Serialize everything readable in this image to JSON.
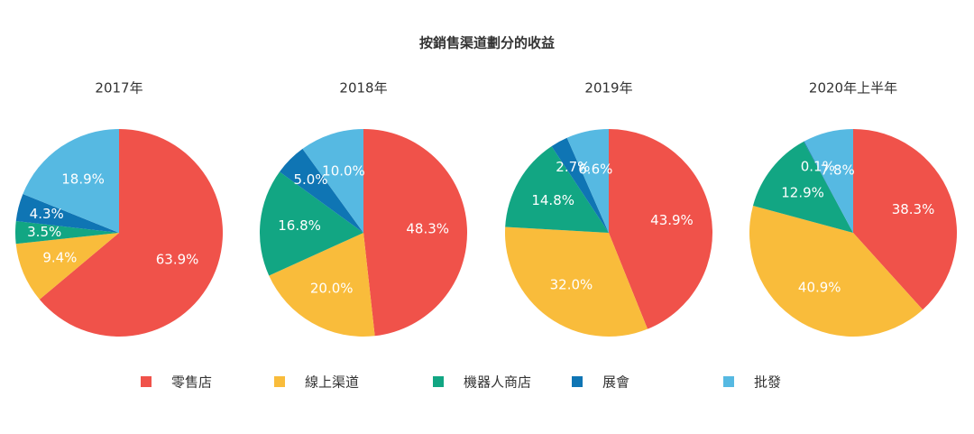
{
  "title": "按銷售渠道劃分的收益",
  "chart_data": [
    {
      "type": "pie",
      "title": "2017年",
      "categories": [
        "零售店",
        "線上渠道",
        "機器人商店",
        "展會",
        "批發"
      ],
      "colors": [
        "#f0524a",
        "#f9bc3b",
        "#12a683",
        "#0f75b4",
        "#56b9e2"
      ],
      "values": [
        63.9,
        9.4,
        3.5,
        4.3,
        18.9
      ],
      "value_labels": [
        "63.9%",
        "9.4%",
        "3.5%",
        "4.3%",
        "18.9%"
      ]
    },
    {
      "type": "pie",
      "title": "2018年",
      "categories": [
        "零售店",
        "線上渠道",
        "機器人商店",
        "展會",
        "批發"
      ],
      "colors": [
        "#f0524a",
        "#f9bc3b",
        "#12a683",
        "#0f75b4",
        "#56b9e2"
      ],
      "values": [
        48.3,
        20.0,
        16.8,
        5.0,
        10.0
      ],
      "value_labels": [
        "48.3%",
        "20.0%",
        "16.8%",
        "5.0%",
        "10.0%"
      ]
    },
    {
      "type": "pie",
      "title": "2019年",
      "categories": [
        "零售店",
        "線上渠道",
        "機器人商店",
        "展會",
        "批發"
      ],
      "colors": [
        "#f0524a",
        "#f9bc3b",
        "#12a683",
        "#0f75b4",
        "#56b9e2"
      ],
      "values": [
        43.9,
        32.0,
        14.8,
        2.7,
        6.6
      ],
      "value_labels": [
        "43.9%",
        "32.0%",
        "14.8%",
        "2.7%",
        "6.6%"
      ]
    },
    {
      "type": "pie",
      "title": "2020年上半年",
      "categories": [
        "零售店",
        "線上渠道",
        "機器人商店",
        "展會",
        "批發"
      ],
      "colors": [
        "#f0524a",
        "#f9bc3b",
        "#12a683",
        "#0f75b4",
        "#56b9e2"
      ],
      "values": [
        38.3,
        40.9,
        12.9,
        0.1,
        7.8
      ],
      "value_labels": [
        "38.3%",
        "40.9%",
        "12.9%",
        "0.1%",
        "7.8%"
      ]
    }
  ]
}
